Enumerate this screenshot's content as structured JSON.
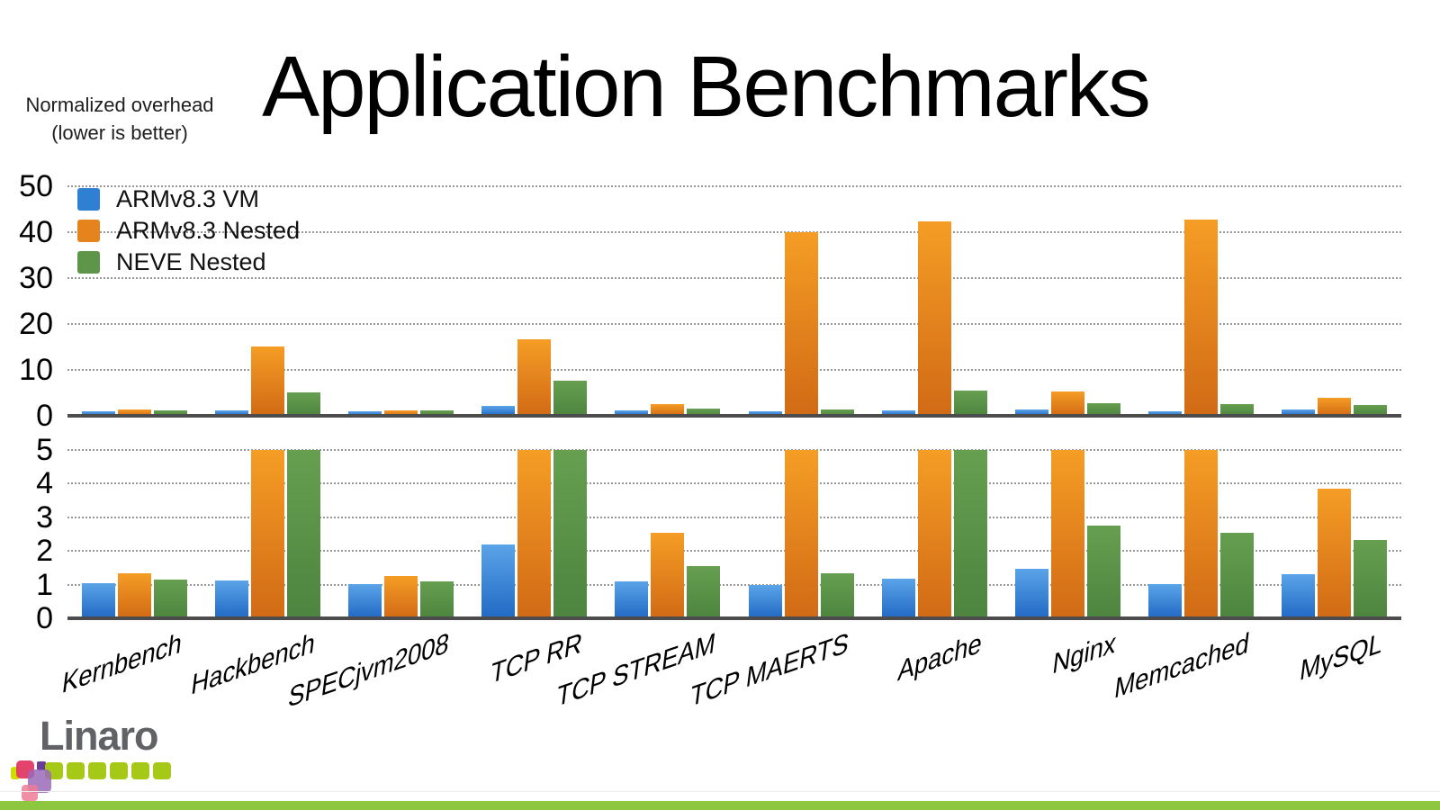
{
  "slide": {
    "title": "Application Benchmarks",
    "y_axis_note": [
      "Normalized overhead",
      "(lower is better)"
    ]
  },
  "chart_data": {
    "type": "bar",
    "title": "Application Benchmarks",
    "ylabel": "Normalized overhead (lower is better)",
    "categories": [
      "Kernbench",
      "Hackbench",
      "SPECjvm2008",
      "TCP RR",
      "TCP STREAM",
      "TCP MAERTS",
      "Apache",
      "Nginx",
      "Memcached",
      "MySQL"
    ],
    "series": [
      {
        "name": "ARMv8.3 VM",
        "color": "#2f80d2",
        "values": [
          1.03,
          1.12,
          1.01,
          2.2,
          1.1,
          1.0,
          1.18,
          1.46,
          1.02,
          1.3
        ]
      },
      {
        "name": "ARMv8.3 Nested",
        "color": "#e5831d",
        "values": [
          1.33,
          15.1,
          1.27,
          16.6,
          2.55,
          40.0,
          42.4,
          5.2,
          42.8,
          3.85
        ]
      },
      {
        "name": "NEVE Nested",
        "color": "#5d9549",
        "values": [
          1.14,
          5.1,
          1.09,
          7.7,
          1.56,
          1.33,
          5.4,
          2.76,
          2.55,
          2.32
        ]
      }
    ],
    "panels": [
      {
        "ylim": [
          0,
          50
        ],
        "yticks": [
          50,
          40,
          30,
          20,
          10,
          0
        ]
      },
      {
        "ylim": [
          0,
          5
        ],
        "yticks": [
          5,
          4,
          3,
          2,
          1,
          0
        ],
        "note": "bars exceeding 5 are clipped"
      }
    ],
    "grid": "horizontal-dotted",
    "legend_position": "top-left"
  },
  "footer": {
    "logo_text": "Linaro",
    "accent_bar_color": "#8dc63f"
  }
}
